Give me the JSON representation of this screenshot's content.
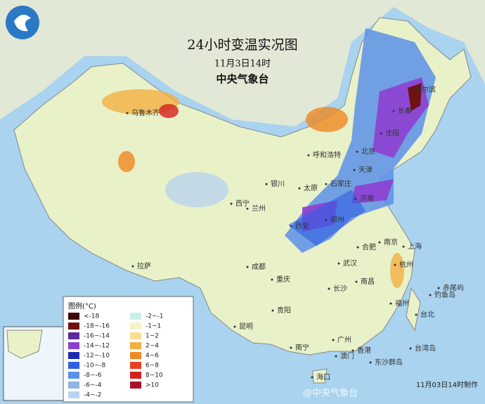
{
  "header": {
    "title": "24小时变温实况图",
    "date": "11月3日14时",
    "agency": "中央气象台"
  },
  "legend": {
    "title": "图例(°C)",
    "entries": [
      {
        "label": "<-18",
        "color": "#3d0808"
      },
      {
        "label": "-18~-16",
        "color": "#6e1212"
      },
      {
        "label": "-16~-14",
        "color": "#5b2a9e"
      },
      {
        "label": "-14~-12",
        "color": "#8e3fd0"
      },
      {
        "label": "-12~-10",
        "color": "#1c2ab2"
      },
      {
        "label": "-10~-8",
        "color": "#2f5fe2"
      },
      {
        "label": "-8~-6",
        "color": "#5c90e8"
      },
      {
        "label": "-6~-4",
        "color": "#8db4e4"
      },
      {
        "label": "-4~-2",
        "color": "#b9d5ee"
      },
      {
        "label": "-2~-1",
        "color": "#c8efe6"
      },
      {
        "label": "-1~1",
        "color": "#f4f4c8"
      },
      {
        "label": "1~2",
        "color": "#f7df92"
      },
      {
        "label": "2~4",
        "color": "#f2b042"
      },
      {
        "label": "4~6",
        "color": "#ee8a22"
      },
      {
        "label": "6~8",
        "color": "#e84222"
      },
      {
        "label": "8~10",
        "color": "#d42020"
      },
      {
        "label": ">10",
        "color": "#a8102a"
      }
    ]
  },
  "cities": [
    "哈尔滨",
    "长春",
    "沈阳",
    "北京",
    "天津",
    "呼和浩特",
    "石家庄",
    "太原",
    "济南",
    "银川",
    "西宁",
    "兰州",
    "郑州",
    "西安",
    "合肥",
    "南京",
    "上海",
    "武汉",
    "杭州",
    "成都",
    "重庆",
    "长沙",
    "南昌",
    "福州",
    "贵阳",
    "昆明",
    "拉萨",
    "乌鲁木齐",
    "南宁",
    "广州",
    "香港",
    "澳门",
    "海口",
    "台北",
    "钓鱼岛",
    "赤尾屿",
    "台湾岛",
    "东沙群岛"
  ],
  "footer": {
    "watermark": "@中央气象台",
    "made": "11月03日14时制作"
  }
}
